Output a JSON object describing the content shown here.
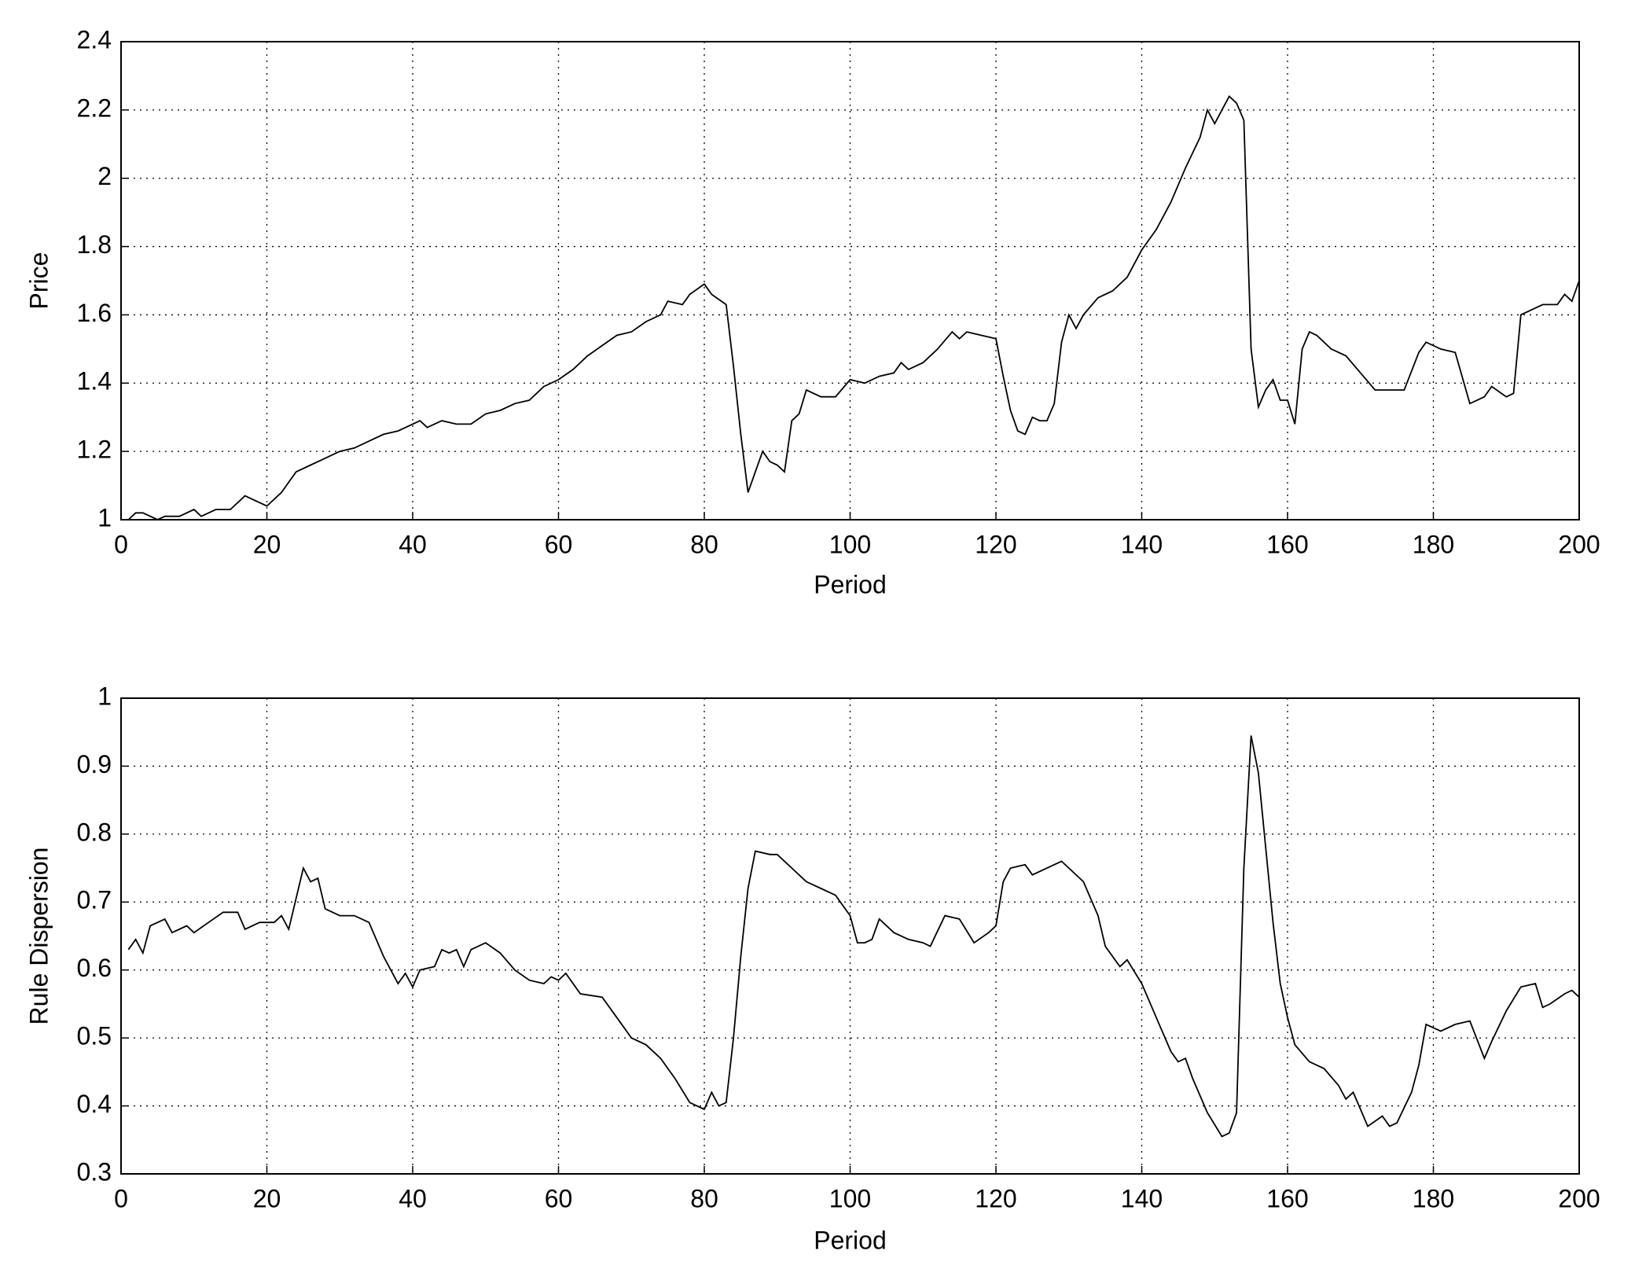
{
  "chart_data": [
    {
      "type": "line",
      "xlabel": "Period",
      "ylabel": "Price",
      "x": [
        1,
        2,
        3,
        5,
        6,
        8,
        10,
        11,
        13,
        15,
        17,
        18,
        20,
        22,
        24,
        26,
        28,
        30,
        32,
        34,
        36,
        38,
        40,
        41,
        42,
        44,
        46,
        48,
        50,
        52,
        54,
        56,
        58,
        60,
        62,
        64,
        66,
        68,
        70,
        72,
        74,
        75,
        77,
        78,
        80,
        81,
        83,
        84,
        85,
        86,
        87,
        88,
        89,
        90,
        91,
        92,
        93,
        94,
        96,
        98,
        100,
        102,
        104,
        106,
        107,
        108,
        110,
        112,
        114,
        115,
        116,
        118,
        120,
        121,
        122,
        123,
        124,
        125,
        126,
        127,
        128,
        129,
        130,
        131,
        132,
        134,
        136,
        138,
        140,
        142,
        144,
        146,
        148,
        149,
        150,
        152,
        153,
        154,
        155,
        156,
        157,
        158,
        159,
        160,
        161,
        162,
        163,
        164,
        166,
        168,
        170,
        172,
        174,
        176,
        178,
        179,
        181,
        183,
        185,
        187,
        188,
        190,
        191,
        192,
        193,
        195,
        197,
        198,
        199,
        200
      ],
      "values": [
        1.0,
        1.02,
        1.02,
        1.0,
        1.01,
        1.01,
        1.03,
        1.01,
        1.03,
        1.03,
        1.07,
        1.06,
        1.04,
        1.08,
        1.14,
        1.16,
        1.18,
        1.2,
        1.21,
        1.23,
        1.25,
        1.26,
        1.28,
        1.29,
        1.27,
        1.29,
        1.28,
        1.28,
        1.31,
        1.32,
        1.34,
        1.35,
        1.39,
        1.41,
        1.44,
        1.48,
        1.51,
        1.54,
        1.55,
        1.58,
        1.6,
        1.64,
        1.63,
        1.66,
        1.69,
        1.66,
        1.63,
        1.45,
        1.25,
        1.08,
        1.14,
        1.2,
        1.17,
        1.16,
        1.14,
        1.29,
        1.31,
        1.38,
        1.36,
        1.36,
        1.41,
        1.4,
        1.42,
        1.43,
        1.46,
        1.44,
        1.46,
        1.5,
        1.55,
        1.53,
        1.55,
        1.54,
        1.53,
        1.42,
        1.32,
        1.26,
        1.25,
        1.3,
        1.29,
        1.29,
        1.34,
        1.52,
        1.6,
        1.56,
        1.6,
        1.65,
        1.67,
        1.71,
        1.79,
        1.85,
        1.93,
        2.03,
        2.12,
        2.2,
        2.16,
        2.24,
        2.22,
        2.17,
        1.5,
        1.33,
        1.38,
        1.41,
        1.35,
        1.35,
        1.28,
        1.5,
        1.55,
        1.54,
        1.5,
        1.48,
        1.43,
        1.38,
        1.38,
        1.38,
        1.49,
        1.52,
        1.5,
        1.49,
        1.34,
        1.36,
        1.39,
        1.36,
        1.37,
        1.6,
        1.61,
        1.63,
        1.63,
        1.66,
        1.64,
        1.7
      ],
      "color": "#000000",
      "xlim": [
        0,
        200
      ],
      "xticks": [
        0,
        20,
        40,
        60,
        80,
        100,
        120,
        140,
        160,
        180,
        200
      ],
      "ylim": [
        1,
        2.4
      ],
      "yticks": [
        1,
        1.2,
        1.4,
        1.6,
        1.8,
        2,
        2.2,
        2.4
      ],
      "grid": true
    },
    {
      "type": "line",
      "xlabel": "Period",
      "ylabel": "Rule Dispersion",
      "x": [
        1,
        2,
        3,
        4,
        6,
        7,
        9,
        10,
        12,
        14,
        16,
        17,
        19,
        21,
        22,
        23,
        25,
        26,
        27,
        28,
        30,
        32,
        34,
        36,
        38,
        39,
        40,
        41,
        43,
        44,
        45,
        46,
        47,
        48,
        50,
        52,
        54,
        56,
        58,
        59,
        60,
        61,
        63,
        66,
        68,
        70,
        72,
        74,
        76,
        78,
        80,
        81,
        82,
        83,
        84,
        85,
        86,
        87,
        89,
        90,
        92,
        94,
        96,
        98,
        100,
        101,
        102,
        103,
        104,
        106,
        108,
        110,
        111,
        113,
        115,
        117,
        119,
        120,
        121,
        122,
        124,
        125,
        127,
        129,
        130,
        132,
        134,
        135,
        137,
        138,
        140,
        142,
        144,
        145,
        146,
        147,
        149,
        151,
        152,
        153,
        154,
        155,
        156,
        157,
        158,
        159,
        160,
        161,
        163,
        165,
        167,
        168,
        169,
        170,
        171,
        173,
        174,
        175,
        177,
        178,
        179,
        180,
        181,
        183,
        185,
        187,
        188,
        190,
        192,
        194,
        195,
        196,
        198,
        199,
        200
      ],
      "values": [
        0.63,
        0.645,
        0.625,
        0.665,
        0.675,
        0.655,
        0.665,
        0.655,
        0.67,
        0.685,
        0.685,
        0.66,
        0.67,
        0.67,
        0.68,
        0.66,
        0.75,
        0.73,
        0.735,
        0.69,
        0.68,
        0.68,
        0.67,
        0.62,
        0.58,
        0.595,
        0.575,
        0.6,
        0.605,
        0.63,
        0.625,
        0.63,
        0.605,
        0.63,
        0.64,
        0.625,
        0.6,
        0.585,
        0.58,
        0.59,
        0.585,
        0.595,
        0.565,
        0.56,
        0.53,
        0.5,
        0.49,
        0.47,
        0.44,
        0.405,
        0.395,
        0.42,
        0.4,
        0.405,
        0.5,
        0.62,
        0.72,
        0.775,
        0.77,
        0.77,
        0.75,
        0.73,
        0.72,
        0.71,
        0.68,
        0.64,
        0.64,
        0.645,
        0.675,
        0.655,
        0.645,
        0.64,
        0.635,
        0.68,
        0.675,
        0.64,
        0.655,
        0.665,
        0.73,
        0.75,
        0.755,
        0.74,
        0.75,
        0.76,
        0.75,
        0.73,
        0.68,
        0.635,
        0.605,
        0.615,
        0.58,
        0.53,
        0.48,
        0.465,
        0.47,
        0.44,
        0.39,
        0.355,
        0.36,
        0.39,
        0.75,
        0.945,
        0.89,
        0.78,
        0.67,
        0.58,
        0.53,
        0.49,
        0.465,
        0.455,
        0.43,
        0.41,
        0.42,
        0.395,
        0.37,
        0.385,
        0.37,
        0.375,
        0.42,
        0.46,
        0.52,
        0.515,
        0.51,
        0.52,
        0.525,
        0.47,
        0.495,
        0.54,
        0.575,
        0.58,
        0.545,
        0.55,
        0.565,
        0.57,
        0.56
      ],
      "color": "#000000",
      "xlim": [
        0,
        200
      ],
      "xticks": [
        0,
        20,
        40,
        60,
        80,
        100,
        120,
        140,
        160,
        180,
        200
      ],
      "ylim": [
        0.3,
        1
      ],
      "yticks": [
        0.3,
        0.4,
        0.5,
        0.6,
        0.7,
        0.8,
        0.9,
        1
      ],
      "grid": true
    }
  ]
}
